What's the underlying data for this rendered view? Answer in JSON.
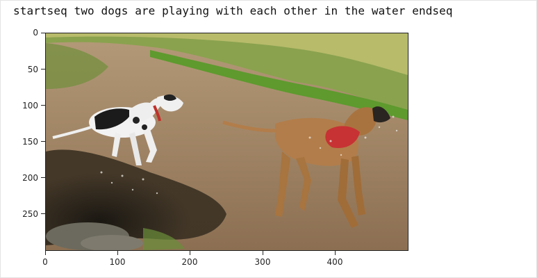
{
  "output": {
    "caption": "startseq two dogs are playing with each other in the water endseq"
  },
  "figure": {
    "image_description_icon": "two-dogs-photo",
    "x_ticks": [
      "0",
      "100",
      "200",
      "300",
      "400"
    ],
    "y_ticks": [
      "0",
      "50",
      "100",
      "150",
      "200",
      "250"
    ]
  }
}
